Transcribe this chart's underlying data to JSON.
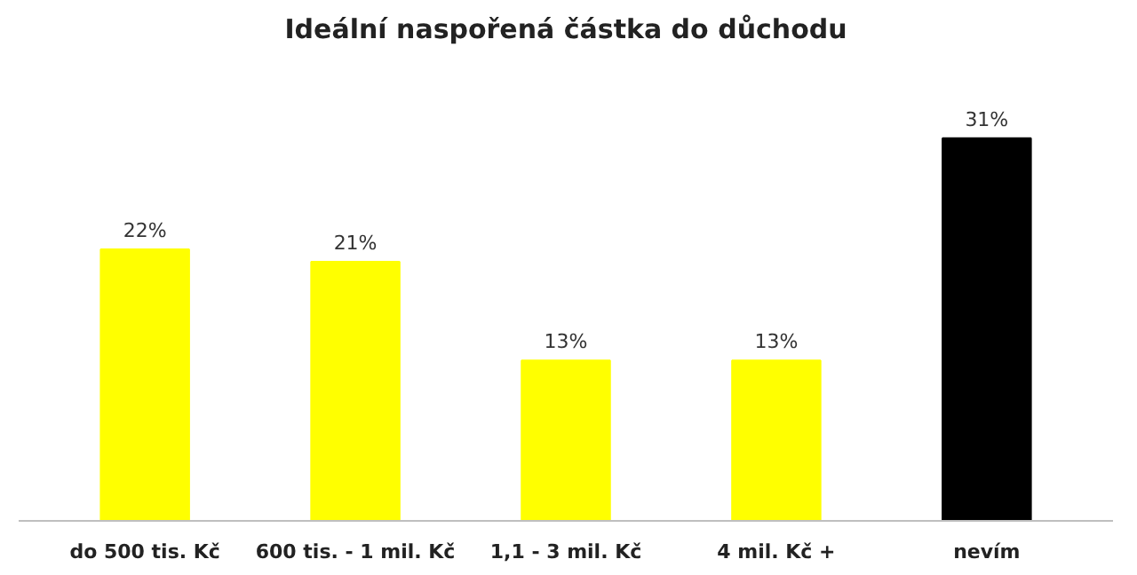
{
  "chart_data": {
    "type": "bar",
    "title": "Ideální naspořená částka do důchodu",
    "categories": [
      "do 500 tis. Kč",
      "600 tis. - 1 mil. Kč",
      "1,1 - 3 mil. Kč",
      "4 mil. Kč +",
      "nevím"
    ],
    "values": [
      22,
      21,
      13,
      13,
      31
    ],
    "colors": [
      "#ffff00",
      "#ffff00",
      "#ffff00",
      "#ffff00",
      "#000000"
    ],
    "value_labels": [
      "22%",
      "21%",
      "13%",
      "13%",
      "31%"
    ],
    "grid": false
  }
}
